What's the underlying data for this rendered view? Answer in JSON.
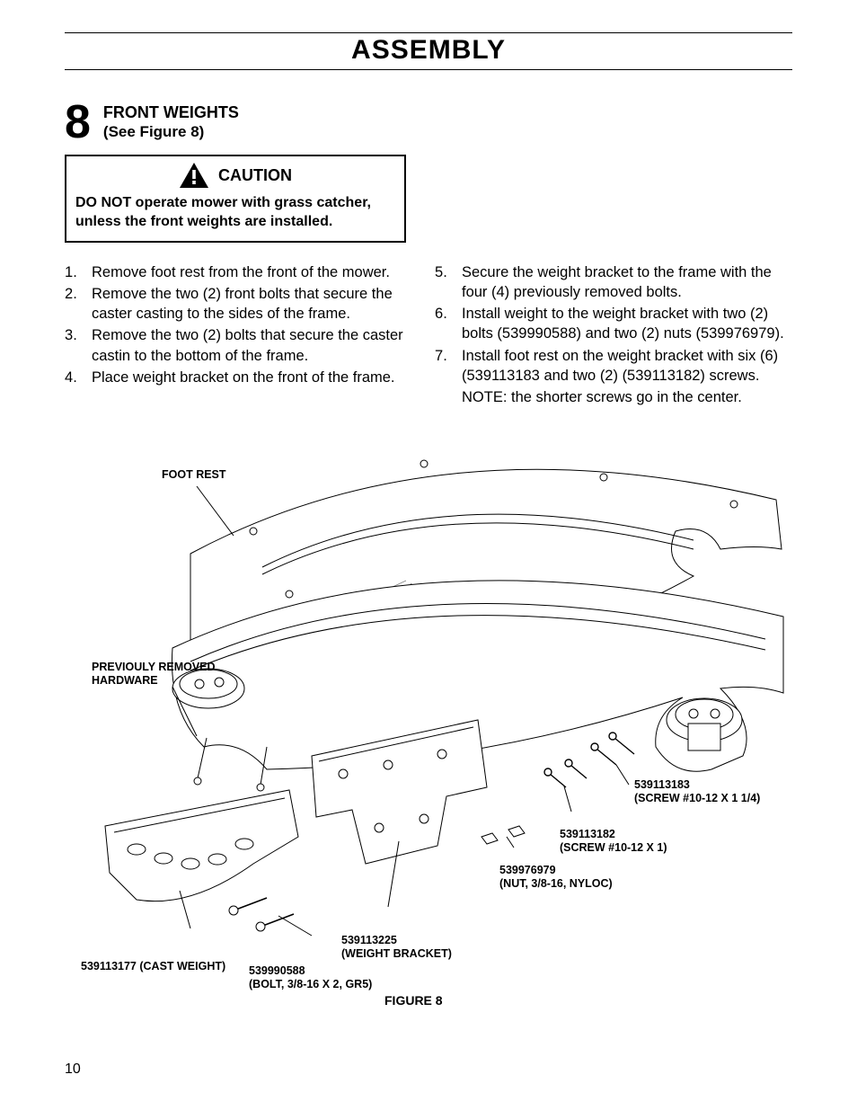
{
  "page_title": "ASSEMBLY",
  "step_number": "8",
  "step_heading_line1": "FRONT WEIGHTS",
  "step_heading_line2": "(See Figure 8)",
  "caution_word": "CAUTION",
  "caution_text": "DO NOT operate mower with grass catcher, unless the front weights are installed.",
  "steps_left": [
    "Remove foot rest from the front of the mower.",
    "Remove the two (2)  front bolts that secure the caster casting to the sides of the frame.",
    "Remove the two (2) bolts that secure the caster castin to the bottom of the frame.",
    "Place weight bracket on the front of the frame."
  ],
  "steps_right": [
    "Secure the weight bracket to the frame with the four (4) previously removed bolts.",
    "Install weight to the weight bracket with two (2) bolts (539990588) and two (2) nuts (539976979).",
    "Install foot rest on the weight bracket with six (6) (539113183 and two (2) (539113182) screws."
  ],
  "steps_right_start": 5,
  "note_line": "NOTE: the shorter screws go in the center.",
  "figure": {
    "caption": "FIGURE  8",
    "labels": {
      "foot_rest": "FOOT REST",
      "prev_hw_1": "PREVIOULY REMOVED",
      "prev_hw_2": "HARDWARE",
      "p_113183_1": "539113183",
      "p_113183_2": "(SCREW #10-12 X 1 1/4)",
      "p_113182_1": "539113182",
      "p_113182_2": "(SCREW #10-12 X 1)",
      "p_976979_1": "539976979",
      "p_976979_2": "(NUT, 3/8-16, NYLOC)",
      "p_113225_1": "539113225",
      "p_113225_2": "(WEIGHT BRACKET)",
      "p_990588_1": "539990588",
      "p_990588_2": "(BOLT, 3/8-16 X 2, GR5)",
      "p_113177": "539113177 (CAST WEIGHT)"
    },
    "stroke_color": "#000000",
    "fill_color": "#ffffff",
    "hatch_color": "#808080"
  },
  "page_number": "10"
}
